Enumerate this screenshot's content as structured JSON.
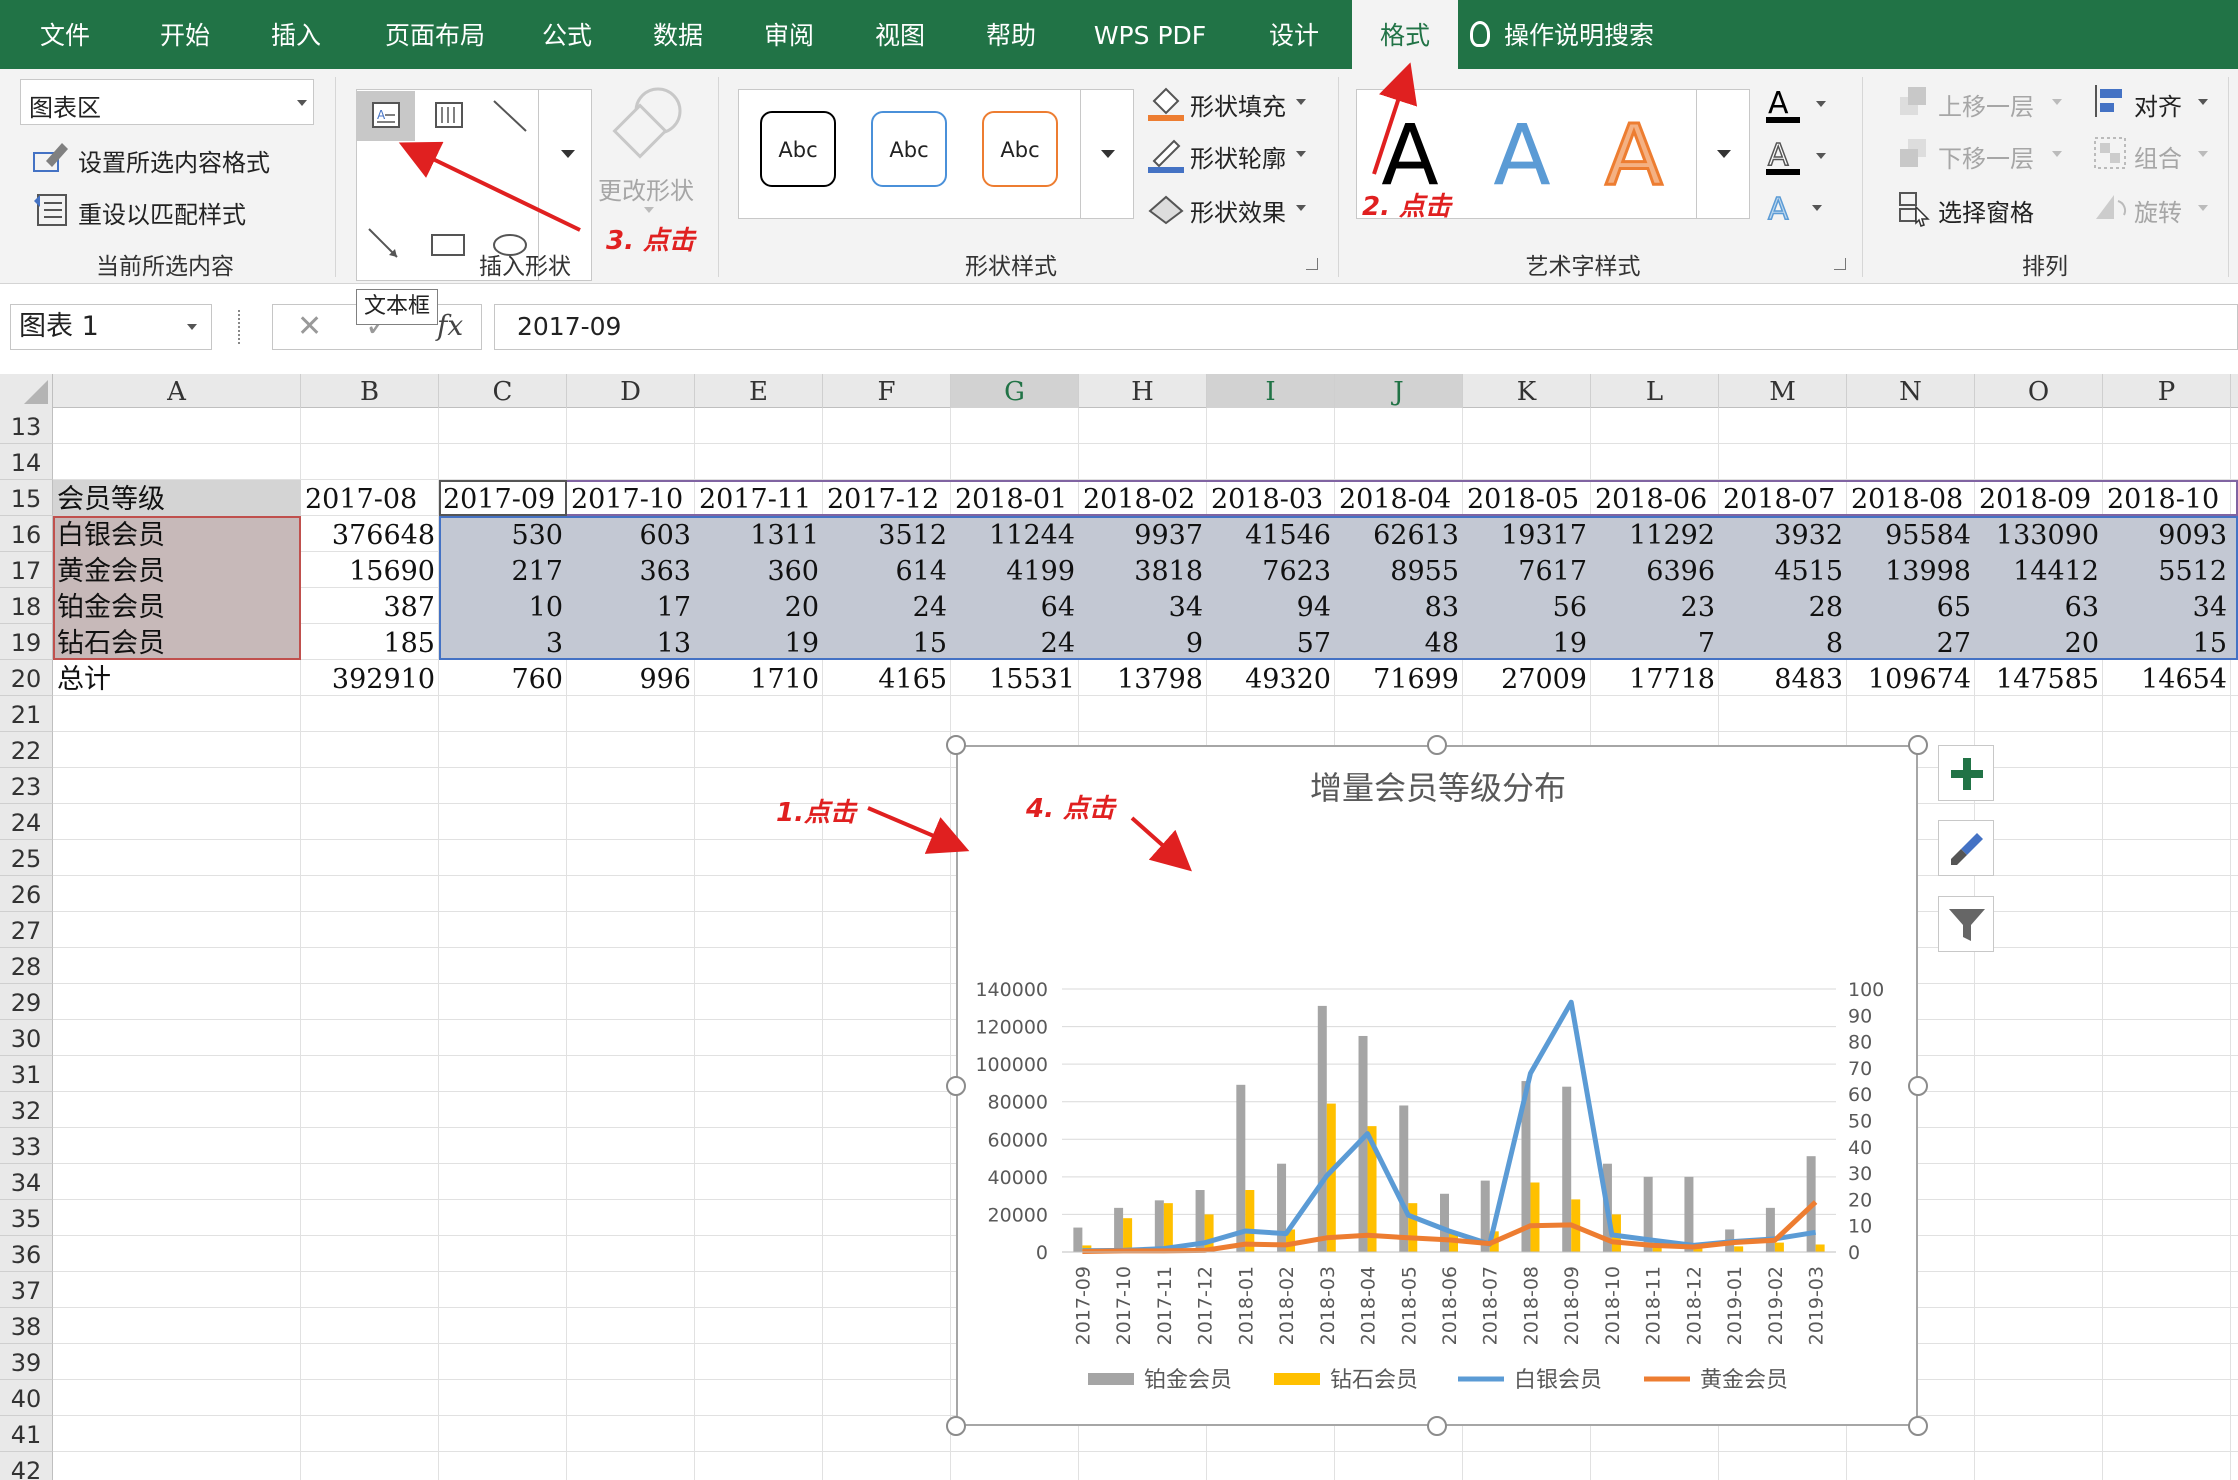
{
  "tabs": [
    "文件",
    "开始",
    "插入",
    "页面布局",
    "公式",
    "数据",
    "审阅",
    "视图",
    "帮助",
    "WPS PDF",
    "设计",
    "格式"
  ],
  "active_tab": "格式",
  "search_label": "操作说明搜索",
  "ribbon": {
    "current_selection": {
      "dropdown_value": "图表区",
      "format_selection": "设置所选内容格式",
      "reset_style": "重设以匹配样式",
      "group_label": "当前所选内容"
    },
    "insert_shapes": {
      "change_shape": "更改形状",
      "group_label": "插入形状"
    },
    "shape_styles": {
      "samples": [
        "Abc",
        "Abc",
        "Abc"
      ],
      "sample_colors": [
        "#000000",
        "#4a90d9",
        "#ed7d31"
      ],
      "fill": "形状填充",
      "outline": "形状轮廓",
      "effects": "形状效果",
      "group_label": "形状样式"
    },
    "wordart": {
      "samples": [
        "A",
        "A",
        "A"
      ],
      "group_label": "艺术字样式"
    },
    "arrange": {
      "bring_forward": "上移一层",
      "send_backward": "下移一层",
      "selection_pane": "选择窗格",
      "align": "对齐",
      "group": "组合",
      "rotate": "旋转",
      "group_label": "排列"
    }
  },
  "tooltip": "文本框",
  "formula_bar": {
    "name_box": "图表 1",
    "fx": "fx",
    "formula": "2017-09"
  },
  "columns": [
    "A",
    "B",
    "C",
    "D",
    "E",
    "F",
    "G",
    "H",
    "I",
    "J",
    "K",
    "L",
    "M",
    "N",
    "O",
    "P"
  ],
  "rows": [
    "13",
    "14",
    "15",
    "16",
    "17",
    "18",
    "19",
    "20",
    "21",
    "22",
    "23",
    "24",
    "25",
    "26",
    "27",
    "28",
    "29",
    "30",
    "31",
    "32",
    "33",
    "34",
    "35",
    "36",
    "37",
    "38",
    "39",
    "40",
    "41",
    "42"
  ],
  "table": {
    "header": [
      "会员等级",
      "2017-08",
      "2017-09",
      "2017-10",
      "2017-11",
      "2017-12",
      "2018-01",
      "2018-02",
      "2018-03",
      "2018-04",
      "2018-05",
      "2018-06",
      "2018-07",
      "2018-08",
      "2018-09",
      "2018-10"
    ],
    "rows": [
      [
        "白银会员",
        "376648",
        "530",
        "603",
        "1311",
        "3512",
        "11244",
        "9937",
        "41546",
        "62613",
        "19317",
        "11292",
        "3932",
        "95584",
        "133090",
        "9093"
      ],
      [
        "黄金会员",
        "15690",
        "217",
        "363",
        "360",
        "614",
        "4199",
        "3818",
        "7623",
        "8955",
        "7617",
        "6396",
        "4515",
        "13998",
        "14412",
        "5512"
      ],
      [
        "铂金会员",
        "387",
        "10",
        "17",
        "20",
        "24",
        "64",
        "34",
        "94",
        "83",
        "56",
        "23",
        "28",
        "65",
        "63",
        "34"
      ],
      [
        "钻石会员",
        "185",
        "3",
        "13",
        "19",
        "15",
        "24",
        "9",
        "57",
        "48",
        "19",
        "7",
        "8",
        "27",
        "20",
        "15"
      ],
      [
        "总计",
        "392910",
        "760",
        "996",
        "1710",
        "4165",
        "15531",
        "13798",
        "49320",
        "71699",
        "27009",
        "17718",
        "8483",
        "109674",
        "147585",
        "14654"
      ]
    ]
  },
  "chart_data": {
    "type": "bar",
    "title": "增量会员等级分布",
    "categories": [
      "2017-09",
      "2017-10",
      "2017-11",
      "2017-12",
      "2018-01",
      "2018-02",
      "2018-03",
      "2018-04",
      "2018-05",
      "2018-06",
      "2018-07",
      "2018-08",
      "2018-09",
      "2018-10",
      "2018-11",
      "2018-12",
      "2019-01",
      "2019-02",
      "2019-03"
    ],
    "y_left": {
      "min": 0,
      "max": 140000,
      "ticks": [
        "0",
        "20000",
        "40000",
        "60000",
        "80000",
        "100000",
        "120000",
        "140000"
      ]
    },
    "y_right": {
      "min": 0,
      "max": 100,
      "ticks": [
        "0",
        "10",
        "20",
        "30",
        "40",
        "50",
        "60",
        "70",
        "80",
        "90",
        "100"
      ]
    },
    "series": [
      {
        "name": "铂金会员",
        "kind": "bar",
        "axis": "left",
        "color": "#a5a5a5",
        "values": [
          13000,
          23500,
          27500,
          33000,
          89000,
          47000,
          131000,
          115000,
          78000,
          31000,
          38000,
          91000,
          88000,
          47000,
          40000,
          40000,
          12000,
          23500,
          51000
        ]
      },
      {
        "name": "钻石会员",
        "kind": "bar",
        "axis": "left",
        "color": "#ffc000",
        "values": [
          3500,
          18000,
          26000,
          20000,
          33000,
          12000,
          79000,
          67000,
          26000,
          10000,
          11000,
          37000,
          28000,
          20000,
          5000,
          3000,
          3000,
          5000,
          4000
        ]
      },
      {
        "name": "白银会员",
        "kind": "line",
        "axis": "right",
        "color": "#5b9bd5",
        "values": [
          0.5,
          0.6,
          1.3,
          3.5,
          8,
          7,
          29,
          45,
          14,
          8,
          3,
          68,
          95,
          6.5,
          4.5,
          2.5,
          4,
          5,
          7.5
        ]
      },
      {
        "name": "黄金会员",
        "kind": "line",
        "axis": "right",
        "color": "#ed7d31",
        "values": [
          0.2,
          0.4,
          0.4,
          0.6,
          3,
          2.7,
          5.4,
          6.4,
          5.4,
          4.6,
          3.2,
          10,
          10.3,
          3.9,
          2.5,
          1.9,
          3.6,
          4.5,
          19
        ]
      }
    ],
    "legend": "bottom"
  },
  "annotations": {
    "a1": "1.点击",
    "a2": "2. 点击",
    "a3": "3. 点击",
    "a4": "4. 点击"
  }
}
